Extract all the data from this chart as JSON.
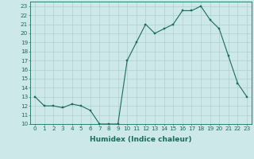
{
  "x": [
    0,
    1,
    2,
    3,
    4,
    5,
    6,
    7,
    8,
    9,
    10,
    11,
    12,
    13,
    14,
    15,
    16,
    17,
    18,
    19,
    20,
    21,
    22,
    23
  ],
  "y": [
    13,
    12,
    12,
    11.8,
    12.2,
    12,
    11.5,
    10,
    10,
    10,
    17,
    19,
    21,
    20,
    20.5,
    21,
    22.5,
    22.5,
    23,
    21.5,
    20.5,
    17.5,
    14.5,
    13
  ],
  "line_color": "#1a6b5a",
  "marker_color": "#1a6b5a",
  "bg_color": "#cce8e8",
  "grid_color": "#b0cfcf",
  "xlabel": "Humidex (Indice chaleur)",
  "xlim": [
    -0.5,
    23.5
  ],
  "ylim": [
    10,
    23.5
  ],
  "yticks": [
    10,
    11,
    12,
    13,
    14,
    15,
    16,
    17,
    18,
    19,
    20,
    21,
    22,
    23
  ],
  "xticks": [
    0,
    1,
    2,
    3,
    4,
    5,
    6,
    7,
    8,
    9,
    10,
    11,
    12,
    13,
    14,
    15,
    16,
    17,
    18,
    19,
    20,
    21,
    22,
    23
  ],
  "tick_color": "#1a6b5a",
  "tick_fontsize": 5.2,
  "xlabel_fontsize": 6.5,
  "marker_size": 2.0,
  "line_width": 0.8
}
